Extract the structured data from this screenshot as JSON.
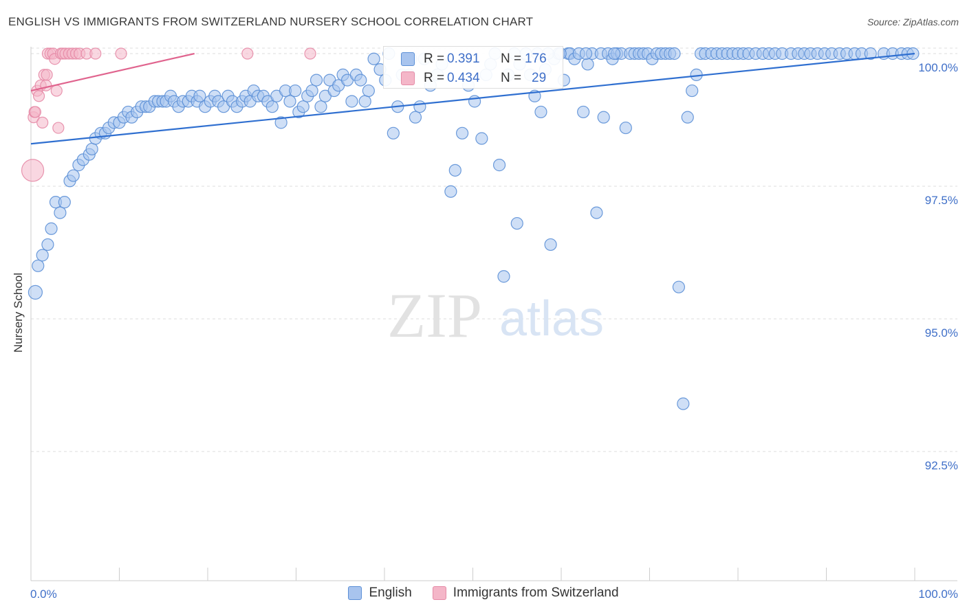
{
  "title": "ENGLISH VS IMMIGRANTS FROM SWITZERLAND NURSERY SCHOOL CORRELATION CHART",
  "source": "Source: ZipAtlas.com",
  "watermark": {
    "zip": "ZIP",
    "atlas": "atlas"
  },
  "colors": {
    "english_fill": "#a8c4ee",
    "english_stroke": "#5b8fd6",
    "english_line": "#2f6fd0",
    "swiss_fill": "#f4b6c8",
    "swiss_stroke": "#e58aa6",
    "swiss_line": "#e0648e",
    "tick_label": "#3f6fc8",
    "grid": "#dddddd"
  },
  "stats": [
    {
      "r_label": "R =",
      "r_value": "0.391",
      "n_label": "N =",
      "n_value": "176"
    },
    {
      "r_label": "R =",
      "r_value": "0.434",
      "n_label": "N =",
      "n_value": "29"
    }
  ],
  "chart_data": {
    "type": "scatter",
    "title": "ENGLISH VS IMMIGRANTS FROM SWITZERLAND NURSERY SCHOOL CORRELATION CHART",
    "xlabel": "",
    "ylabel": "Nursery School",
    "xlim": [
      0,
      100
    ],
    "ylim": [
      90.0,
      100.3
    ],
    "x_tick_labels": [
      {
        "value": 0,
        "label": "0.0%"
      },
      {
        "value": 100,
        "label": "100.0%"
      }
    ],
    "y_ticks": [
      {
        "value": 100.0,
        "label": "100.0%"
      },
      {
        "value": 97.5,
        "label": "97.5%"
      },
      {
        "value": 95.0,
        "label": "95.0%"
      },
      {
        "value": 92.5,
        "label": "92.5%"
      }
    ],
    "grid": true,
    "legend": [
      "English",
      "Immigrants from Switzerland"
    ],
    "series": [
      {
        "name": "English",
        "trend": {
          "x": [
            0,
            100
          ],
          "y": [
            98.3,
            100.0
          ]
        },
        "points": [
          [
            0.5,
            95.5
          ],
          [
            0.8,
            96.0
          ],
          [
            1.3,
            96.2
          ],
          [
            1.9,
            96.4
          ],
          [
            2.3,
            96.7
          ],
          [
            2.8,
            97.2
          ],
          [
            3.3,
            97.0
          ],
          [
            3.8,
            97.2
          ],
          [
            4.4,
            97.6
          ],
          [
            4.8,
            97.7
          ],
          [
            5.4,
            97.9
          ],
          [
            5.9,
            98.0
          ],
          [
            6.6,
            98.1
          ],
          [
            6.9,
            98.2
          ],
          [
            7.3,
            98.4
          ],
          [
            7.9,
            98.5
          ],
          [
            8.4,
            98.5
          ],
          [
            8.8,
            98.6
          ],
          [
            9.4,
            98.7
          ],
          [
            10.0,
            98.7
          ],
          [
            10.5,
            98.8
          ],
          [
            11.0,
            98.9
          ],
          [
            11.4,
            98.8
          ],
          [
            12.0,
            98.9
          ],
          [
            12.5,
            99.0
          ],
          [
            13.0,
            99.0
          ],
          [
            13.4,
            99.0
          ],
          [
            14.0,
            99.1
          ],
          [
            14.4,
            99.1
          ],
          [
            14.9,
            99.1
          ],
          [
            15.3,
            99.1
          ],
          [
            15.8,
            99.2
          ],
          [
            16.2,
            99.1
          ],
          [
            16.7,
            99.0
          ],
          [
            17.2,
            99.1
          ],
          [
            17.8,
            99.1
          ],
          [
            18.2,
            99.2
          ],
          [
            18.8,
            99.1
          ],
          [
            19.1,
            99.2
          ],
          [
            19.7,
            99.0
          ],
          [
            20.3,
            99.1
          ],
          [
            20.8,
            99.2
          ],
          [
            21.2,
            99.1
          ],
          [
            21.8,
            99.0
          ],
          [
            22.3,
            99.2
          ],
          [
            22.8,
            99.1
          ],
          [
            23.3,
            99.0
          ],
          [
            23.9,
            99.1
          ],
          [
            24.3,
            99.2
          ],
          [
            24.8,
            99.1
          ],
          [
            25.2,
            99.3
          ],
          [
            25.7,
            99.2
          ],
          [
            26.3,
            99.2
          ],
          [
            26.8,
            99.1
          ],
          [
            27.3,
            99.0
          ],
          [
            27.8,
            99.2
          ],
          [
            28.3,
            98.7
          ],
          [
            28.8,
            99.3
          ],
          [
            29.3,
            99.1
          ],
          [
            29.9,
            99.3
          ],
          [
            30.3,
            98.9
          ],
          [
            30.8,
            99.0
          ],
          [
            31.3,
            99.2
          ],
          [
            31.8,
            99.3
          ],
          [
            32.3,
            99.5
          ],
          [
            32.8,
            99.0
          ],
          [
            33.3,
            99.2
          ],
          [
            33.8,
            99.5
          ],
          [
            34.3,
            99.3
          ],
          [
            34.8,
            99.4
          ],
          [
            35.3,
            99.6
          ],
          [
            35.8,
            99.5
          ],
          [
            36.3,
            99.1
          ],
          [
            36.8,
            99.6
          ],
          [
            37.3,
            99.5
          ],
          [
            37.8,
            99.1
          ],
          [
            38.2,
            99.3
          ],
          [
            38.8,
            99.9
          ],
          [
            39.5,
            99.7
          ],
          [
            40.1,
            99.5
          ],
          [
            41.0,
            98.5
          ],
          [
            41.5,
            99.0
          ],
          [
            42.0,
            99.6
          ],
          [
            42.8,
            99.6
          ],
          [
            43.5,
            98.8
          ],
          [
            44.0,
            99.0
          ],
          [
            44.5,
            99.9
          ],
          [
            45.2,
            99.4
          ],
          [
            46.0,
            99.6
          ],
          [
            47.5,
            97.4
          ],
          [
            48.0,
            97.8
          ],
          [
            48.8,
            98.5
          ],
          [
            49.5,
            99.4
          ],
          [
            50.2,
            99.1
          ],
          [
            51.0,
            98.4
          ],
          [
            51.5,
            99.6
          ],
          [
            52.0,
            99.8
          ],
          [
            53.0,
            97.9
          ],
          [
            53.5,
            95.8
          ],
          [
            54.0,
            99.6
          ],
          [
            55.0,
            96.8
          ],
          [
            55.3,
            99.8
          ],
          [
            56.0,
            100.0
          ],
          [
            56.5,
            99.6
          ],
          [
            57.0,
            99.2
          ],
          [
            57.7,
            98.9
          ],
          [
            58.2,
            99.7
          ],
          [
            58.8,
            96.4
          ],
          [
            59.2,
            99.9
          ],
          [
            59.7,
            100.0
          ],
          [
            60.3,
            99.5
          ],
          [
            60.8,
            100.0
          ],
          [
            61.0,
            100.0
          ],
          [
            61.5,
            99.9
          ],
          [
            62.0,
            100.0
          ],
          [
            62.5,
            98.9
          ],
          [
            63.0,
            99.8
          ],
          [
            63.5,
            100.0
          ],
          [
            64.0,
            97.0
          ],
          [
            64.5,
            100.0
          ],
          [
            64.8,
            98.8
          ],
          [
            65.3,
            100.0
          ],
          [
            65.8,
            99.9
          ],
          [
            66.3,
            100.0
          ],
          [
            66.8,
            100.0
          ],
          [
            67.3,
            98.6
          ],
          [
            67.8,
            100.0
          ],
          [
            68.3,
            100.0
          ],
          [
            68.8,
            100.0
          ],
          [
            69.3,
            100.0
          ],
          [
            69.8,
            100.0
          ],
          [
            70.3,
            99.9
          ],
          [
            70.8,
            100.0
          ],
          [
            71.3,
            100.0
          ],
          [
            71.8,
            100.0
          ],
          [
            72.3,
            100.0
          ],
          [
            72.8,
            100.0
          ],
          [
            73.3,
            95.6
          ],
          [
            73.8,
            93.4
          ],
          [
            74.3,
            98.8
          ],
          [
            74.8,
            99.3
          ],
          [
            75.3,
            99.6
          ],
          [
            75.8,
            100.0
          ],
          [
            76.3,
            100.0
          ],
          [
            77.0,
            100.0
          ],
          [
            77.6,
            100.0
          ],
          [
            78.2,
            100.0
          ],
          [
            78.8,
            100.0
          ],
          [
            79.4,
            100.0
          ],
          [
            80.0,
            100.0
          ],
          [
            80.6,
            100.0
          ],
          [
            81.2,
            100.0
          ],
          [
            82.0,
            100.0
          ],
          [
            82.8,
            100.0
          ],
          [
            83.5,
            100.0
          ],
          [
            84.2,
            100.0
          ],
          [
            85.0,
            100.0
          ],
          [
            86.0,
            100.0
          ],
          [
            86.8,
            100.0
          ],
          [
            87.5,
            100.0
          ],
          [
            88.2,
            100.0
          ],
          [
            89.0,
            100.0
          ],
          [
            89.8,
            100.0
          ],
          [
            90.6,
            100.0
          ],
          [
            91.5,
            100.0
          ],
          [
            92.3,
            100.0
          ],
          [
            93.2,
            100.0
          ],
          [
            94.0,
            100.0
          ],
          [
            95.0,
            100.0
          ],
          [
            96.5,
            100.0
          ],
          [
            97.5,
            100.0
          ],
          [
            98.5,
            100.0
          ],
          [
            99.2,
            100.0
          ],
          [
            99.8,
            100.0
          ],
          [
            40.5,
            100.0
          ],
          [
            43.0,
            99.9
          ],
          [
            46.5,
            99.8
          ],
          [
            52.5,
            100.0
          ],
          [
            54.7,
            100.0
          ],
          [
            57.3,
            100.0
          ],
          [
            58.5,
            100.0
          ],
          [
            59.9,
            100.0
          ],
          [
            62.8,
            100.0
          ],
          [
            66.0,
            100.0
          ]
        ],
        "large_points": [
          [
            0.5,
            95.5
          ],
          [
            1.0,
            96.0
          ],
          [
            2.5,
            96.7
          ],
          [
            4.5,
            97.6
          ],
          [
            6.0,
            97.9
          ],
          [
            6.8,
            98.2
          ],
          [
            9.0,
            98.6
          ]
        ]
      },
      {
        "name": "Immigrants from Switzerland",
        "trend": {
          "x": [
            0,
            18.5
          ],
          "y": [
            99.3,
            100.0
          ]
        },
        "points": [
          [
            0.2,
            97.8
          ],
          [
            0.3,
            98.8
          ],
          [
            0.4,
            98.9
          ],
          [
            0.5,
            98.9
          ],
          [
            0.7,
            99.3
          ],
          [
            0.9,
            99.2
          ],
          [
            1.1,
            99.4
          ],
          [
            1.3,
            98.7
          ],
          [
            1.5,
            99.6
          ],
          [
            1.7,
            99.4
          ],
          [
            1.8,
            99.6
          ],
          [
            1.9,
            100.0
          ],
          [
            2.2,
            100.0
          ],
          [
            2.5,
            100.0
          ],
          [
            2.7,
            99.9
          ],
          [
            2.9,
            99.3
          ],
          [
            3.1,
            98.6
          ],
          [
            3.4,
            100.0
          ],
          [
            3.6,
            100.0
          ],
          [
            3.9,
            100.0
          ],
          [
            4.3,
            100.0
          ],
          [
            4.7,
            100.0
          ],
          [
            5.1,
            100.0
          ],
          [
            5.5,
            100.0
          ],
          [
            6.3,
            100.0
          ],
          [
            7.3,
            100.0
          ],
          [
            10.2,
            100.0
          ],
          [
            24.5,
            100.0
          ],
          [
            31.6,
            100.0
          ]
        ],
        "large_points": [
          [
            0.2,
            97.8
          ]
        ]
      }
    ]
  }
}
